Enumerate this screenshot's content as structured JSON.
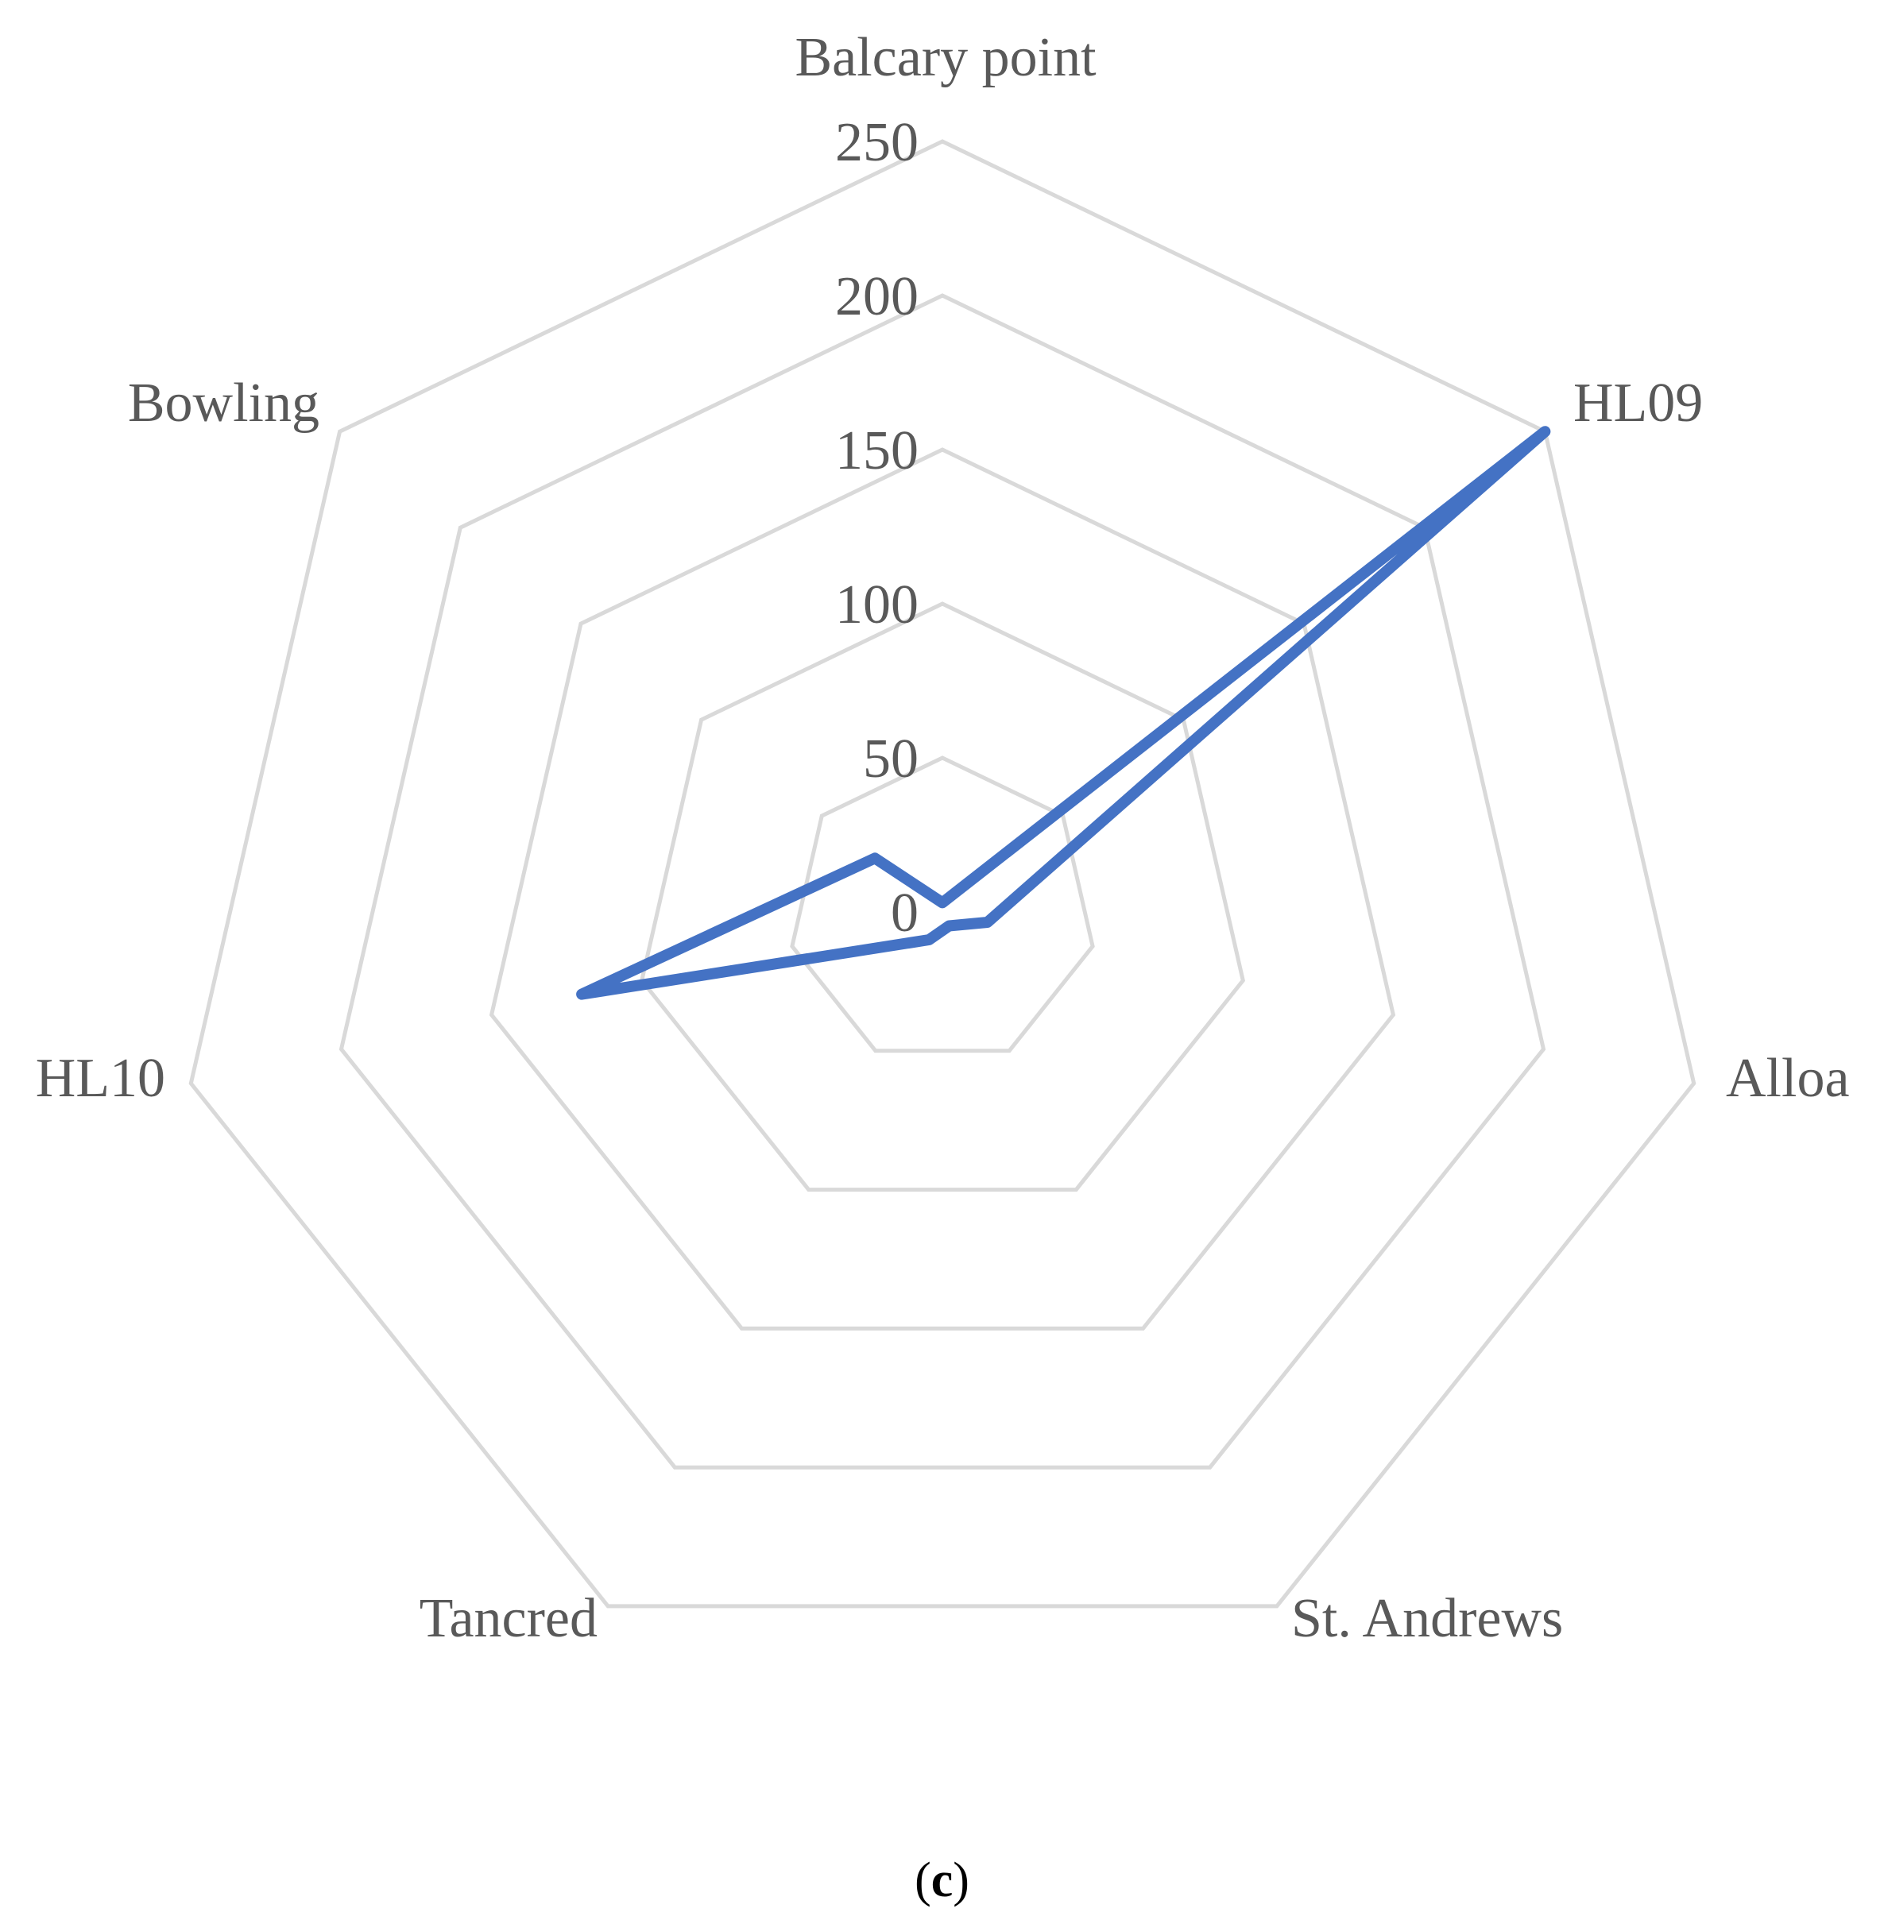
{
  "chart_data": {
    "type": "radar",
    "categories": [
      "Balcary point",
      "HL09",
      "Alloa",
      "St. Andrews",
      "Tancred",
      "HL10",
      "Bowling"
    ],
    "series": [
      {
        "values": [
          3,
          250,
          15,
          5,
          10,
          120,
          28
        ]
      }
    ],
    "rlim": [
      0,
      250
    ],
    "rticks": [
      "0",
      "50",
      "100",
      "150",
      "200",
      "250"
    ],
    "grid": true,
    "legend": "none",
    "colors": {
      "series": "#4472c4",
      "grid": "#d9d9d9",
      "text": "#595959"
    }
  },
  "panel": {
    "open": "(",
    "letter": "c",
    "close": ")"
  }
}
